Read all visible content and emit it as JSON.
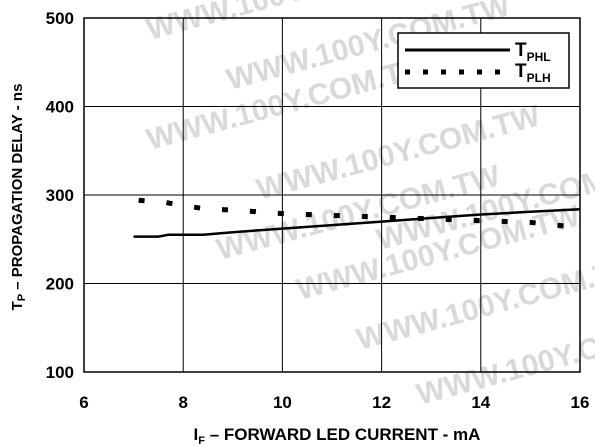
{
  "chart_data": {
    "type": "line",
    "title": "",
    "xlabel": {
      "main": "I",
      "sub": "F",
      "rest": " – FORWARD LED CURRENT - mA"
    },
    "ylabel": {
      "main": "T",
      "sub": "P",
      "rest": " – PROPAGATION DELAY - ns"
    },
    "xlim": [
      6,
      16
    ],
    "ylim": [
      100,
      500
    ],
    "xticks": [
      6,
      8,
      10,
      12,
      14,
      16
    ],
    "yticks": [
      100,
      200,
      300,
      400,
      500
    ],
    "grid": true,
    "legend_position": "top-right",
    "series": [
      {
        "name": {
          "main": "T",
          "sub": "PHL"
        },
        "style": "solid",
        "x": [
          7,
          7.5,
          7.7,
          8,
          8.4,
          9,
          10,
          11,
          12,
          13,
          14,
          15,
          16
        ],
        "y": [
          253,
          253,
          255,
          255,
          255,
          258,
          262,
          266,
          270,
          274,
          278,
          281,
          284
        ]
      },
      {
        "name": {
          "main": "T",
          "sub": "PLH"
        },
        "style": "dotted",
        "x": [
          7.1,
          7.6,
          8,
          8.5,
          9,
          9.5,
          10,
          11,
          12,
          13,
          14,
          15,
          15.7
        ],
        "y": [
          294,
          292,
          288,
          284,
          283,
          281,
          279,
          277,
          275,
          273,
          271,
          269,
          265
        ]
      }
    ]
  },
  "watermark": "WWW.100Y.COM.TW"
}
